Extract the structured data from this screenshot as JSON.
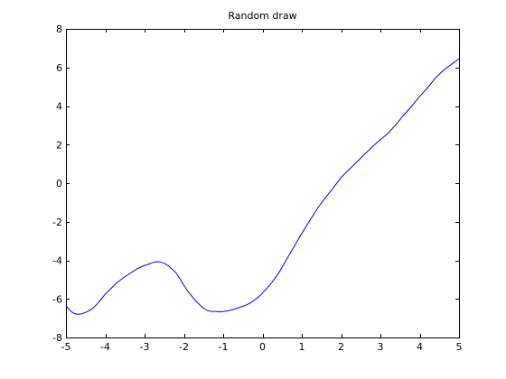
{
  "chart_data": {
    "type": "line",
    "title": "Random draw",
    "xlabel": "",
    "ylabel": "",
    "xlim": [
      -5,
      5
    ],
    "ylim": [
      -8,
      8
    ],
    "xticks": [
      -5,
      -4,
      -3,
      -2,
      -1,
      0,
      1,
      2,
      3,
      4,
      5
    ],
    "yticks": [
      -8,
      -6,
      -4,
      -2,
      0,
      2,
      4,
      6,
      8
    ],
    "xtick_labels": [
      "-5",
      "-4",
      "-3",
      "-2",
      "-1",
      "0",
      "1",
      "2",
      "3",
      "4",
      "5"
    ],
    "ytick_labels": [
      "-8",
      "-6",
      "-4",
      "-2",
      "0",
      "2",
      "4",
      "6",
      "8"
    ],
    "grid": false,
    "line_color": "#0000ff",
    "series": [
      {
        "x": [
          -5.0,
          -4.9,
          -4.8,
          -4.7,
          -4.6,
          -4.5,
          -4.4,
          -4.3,
          -4.2,
          -4.1,
          -4.0,
          -3.9,
          -3.8,
          -3.7,
          -3.6,
          -3.5,
          -3.4,
          -3.3,
          -3.2,
          -3.1,
          -3.0,
          -2.9,
          -2.8,
          -2.7,
          -2.6,
          -2.5,
          -2.4,
          -2.3,
          -2.2,
          -2.1,
          -2.0,
          -1.9,
          -1.8,
          -1.7,
          -1.6,
          -1.5,
          -1.4,
          -1.3,
          -1.2,
          -1.1,
          -1.0,
          -0.9,
          -0.8,
          -0.7,
          -0.6,
          -0.5,
          -0.4,
          -0.3,
          -0.2,
          -0.1,
          0.0,
          0.2,
          0.4,
          0.6,
          0.8,
          1.0,
          1.2,
          1.4,
          1.6,
          1.8,
          2.0,
          2.2,
          2.4,
          2.6,
          2.8,
          3.0,
          3.2,
          3.4,
          3.6,
          3.8,
          4.0,
          4.2,
          4.4,
          4.6,
          4.8,
          5.0
        ],
        "y": [
          -6.35,
          -6.6,
          -6.75,
          -6.8,
          -6.77,
          -6.7,
          -6.6,
          -6.45,
          -6.25,
          -6.0,
          -5.75,
          -5.55,
          -5.35,
          -5.15,
          -5.0,
          -4.85,
          -4.72,
          -4.58,
          -4.45,
          -4.35,
          -4.27,
          -4.2,
          -4.12,
          -4.07,
          -4.08,
          -4.15,
          -4.28,
          -4.45,
          -4.65,
          -4.95,
          -5.3,
          -5.6,
          -5.85,
          -6.1,
          -6.3,
          -6.48,
          -6.6,
          -6.65,
          -6.65,
          -6.67,
          -6.65,
          -6.62,
          -6.58,
          -6.52,
          -6.45,
          -6.38,
          -6.3,
          -6.2,
          -6.05,
          -5.9,
          -5.7,
          -5.25,
          -4.7,
          -4.0,
          -3.3,
          -2.6,
          -1.95,
          -1.3,
          -0.75,
          -0.25,
          0.3,
          0.7,
          1.1,
          1.5,
          1.9,
          2.25,
          2.6,
          3.05,
          3.55,
          4.0,
          4.5,
          4.95,
          5.45,
          5.85,
          6.15,
          6.45
        ]
      }
    ]
  }
}
